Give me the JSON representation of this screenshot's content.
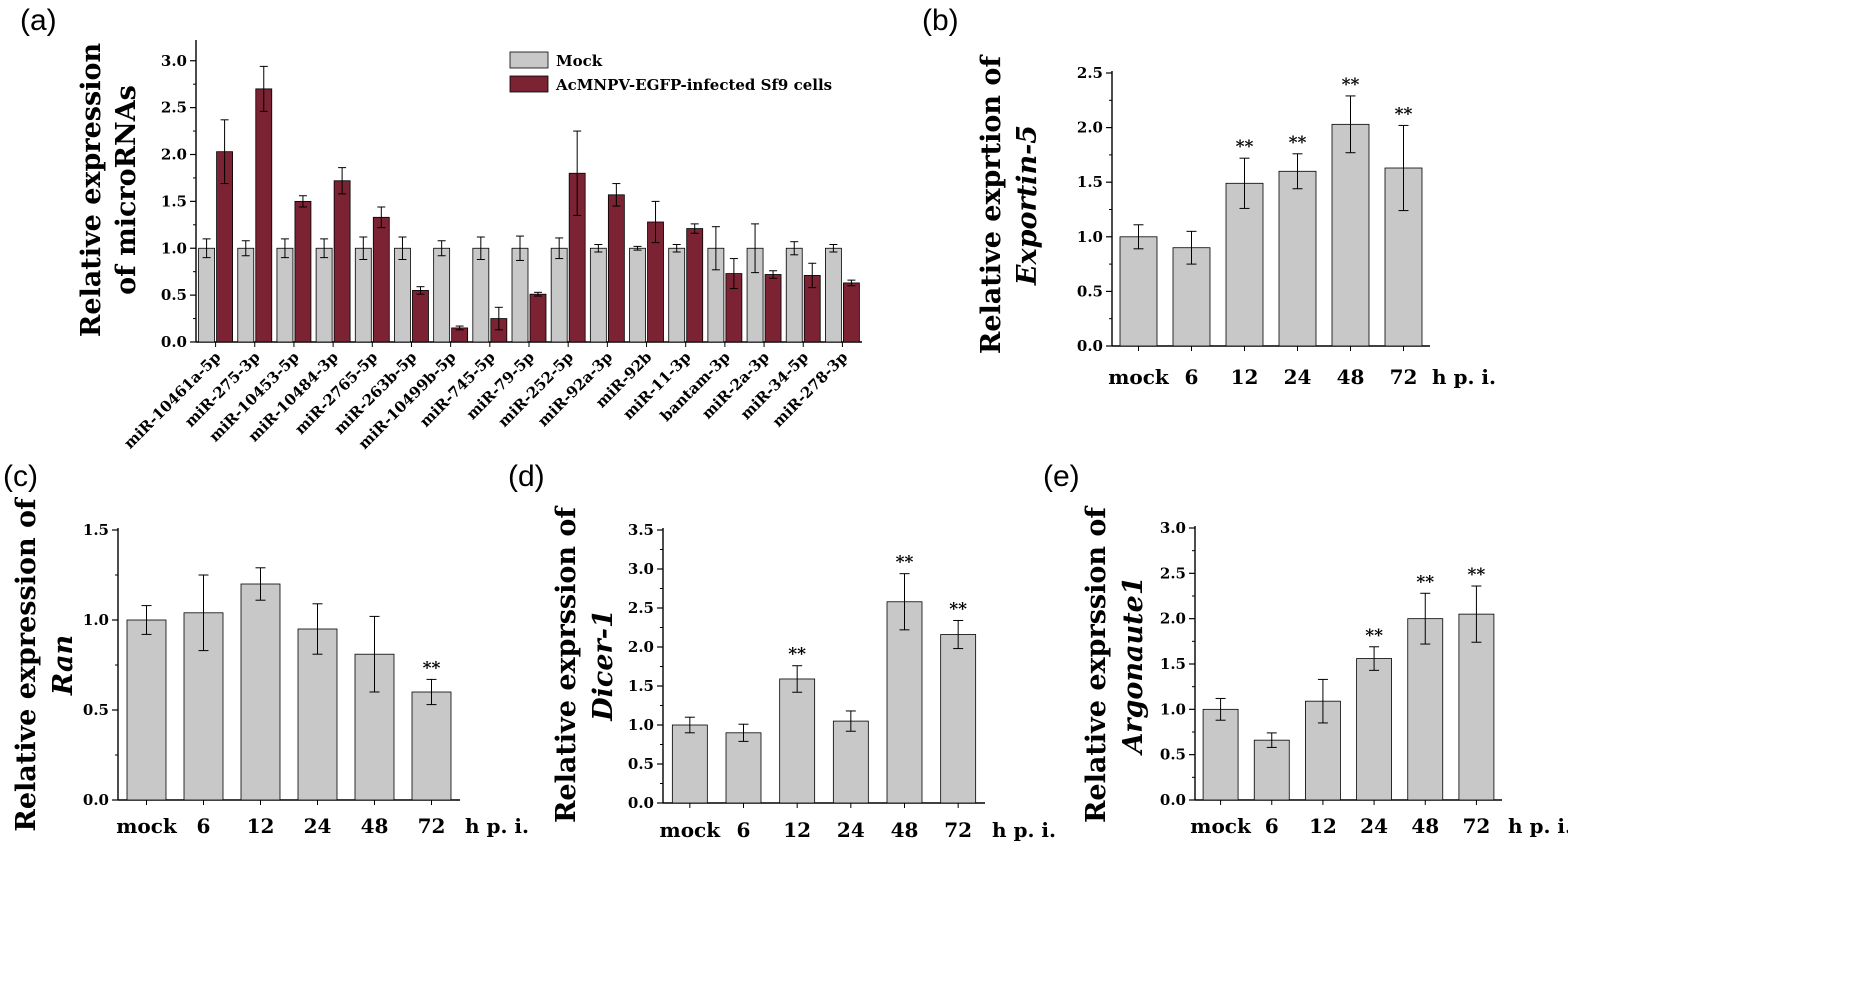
{
  "figure_colors": {
    "mock": "#c8c8c8",
    "infected": "#7b2233",
    "axis": "#000000"
  },
  "chart_data": [
    {
      "id": "a",
      "panel_label": "(a)",
      "type": "bar",
      "ylabel_line1": "Relative expression",
      "ylabel_line2": "of microRNAs",
      "ylim": [
        0,
        3.2
      ],
      "yticks": [
        "0.0",
        "0.5",
        "1.0",
        "1.5",
        "2.0",
        "2.5",
        "3.0"
      ],
      "categories": [
        "miR-10461a-5p",
        "miR-275-3p",
        "miR-10453-5p",
        "miR-10484-3p",
        "miR-2765-5p",
        "miR-263b-5p",
        "miR-10499b-5p",
        "miR-745-5p",
        "miR-79-5p",
        "miR-252-5p",
        "miR-92a-3p",
        "miR-92b",
        "miR-11-3p",
        "bantam-3p",
        "miR-2a-3p",
        "miR-34-5p",
        "miR-278-3p"
      ],
      "series": [
        {
          "name": "Mock",
          "values": [
            1.0,
            1.0,
            1.0,
            1.0,
            1.0,
            1.0,
            1.0,
            1.0,
            1.0,
            1.0,
            1.0,
            1.0,
            1.0,
            1.0,
            1.0,
            1.0,
            1.0
          ],
          "errors": [
            0.1,
            0.08,
            0.1,
            0.1,
            0.12,
            0.12,
            0.08,
            0.12,
            0.13,
            0.11,
            0.04,
            0.02,
            0.04,
            0.23,
            0.26,
            0.07,
            0.04
          ]
        },
        {
          "name": "AcMNPV-EGFP-infected Sf9 cells",
          "values": [
            2.03,
            2.7,
            1.5,
            1.72,
            1.33,
            0.55,
            0.15,
            0.25,
            0.51,
            1.8,
            1.57,
            1.28,
            1.21,
            0.73,
            0.72,
            0.71,
            0.63
          ],
          "errors": [
            0.34,
            0.24,
            0.06,
            0.14,
            0.11,
            0.04,
            0.02,
            0.12,
            0.02,
            0.45,
            0.12,
            0.22,
            0.05,
            0.16,
            0.04,
            0.13,
            0.03
          ]
        }
      ],
      "legend_position": "top-right"
    },
    {
      "id": "b",
      "panel_label": "(b)",
      "type": "bar",
      "ylabel_line1": "Relative exprtion of",
      "ylabel_line2": "Exportin-5",
      "xunit": "h p. i.",
      "ylim": [
        0,
        2.5
      ],
      "yticks": [
        "0.0",
        "0.5",
        "1.0",
        "1.5",
        "2.0",
        "2.5"
      ],
      "categories": [
        "mock",
        "6",
        "12",
        "24",
        "48",
        "72"
      ],
      "values": [
        1.0,
        0.9,
        1.49,
        1.6,
        2.03,
        1.63
      ],
      "errors": [
        0.11,
        0.15,
        0.23,
        0.16,
        0.26,
        0.39
      ],
      "annotations": [
        "",
        "",
        "**",
        "**",
        "**",
        "**"
      ]
    },
    {
      "id": "c",
      "panel_label": "(c)",
      "type": "bar",
      "ylabel_line1": "Relative expression of",
      "ylabel_line2": "Ran",
      "xunit": "h p. i.",
      "ylim": [
        0,
        1.5
      ],
      "yticks": [
        "0.0",
        "0.5",
        "1.0",
        "1.5"
      ],
      "categories": [
        "mock",
        "6",
        "12",
        "24",
        "48",
        "72"
      ],
      "values": [
        1.0,
        1.04,
        1.2,
        0.95,
        0.81,
        0.6
      ],
      "errors": [
        0.08,
        0.21,
        0.09,
        0.14,
        0.21,
        0.07
      ],
      "annotations": [
        "",
        "",
        "",
        "",
        "",
        "**"
      ]
    },
    {
      "id": "d",
      "panel_label": "(d)",
      "type": "bar",
      "ylabel_line1": "Relative exprssion of",
      "ylabel_line2": "Dicer-1",
      "xunit": "h p. i.",
      "ylim": [
        0,
        3.5
      ],
      "yticks": [
        "0.0",
        "0.5",
        "1.0",
        "1.5",
        "2.0",
        "2.5",
        "3.0",
        "3.5"
      ],
      "categories": [
        "mock",
        "6",
        "12",
        "24",
        "48",
        "72"
      ],
      "values": [
        1.0,
        0.9,
        1.59,
        1.05,
        2.58,
        2.16
      ],
      "errors": [
        0.1,
        0.11,
        0.17,
        0.13,
        0.36,
        0.18
      ],
      "annotations": [
        "",
        "",
        "**",
        "",
        "**",
        "**"
      ]
    },
    {
      "id": "e",
      "panel_label": "(e)",
      "type": "bar",
      "ylabel_line1": "Relative exprssion of",
      "ylabel_line2": "Argonaute1",
      "xunit": "h p. i.",
      "ylim": [
        0,
        3.0
      ],
      "yticks": [
        "0.0",
        "0.5",
        "1.0",
        "1.5",
        "2.0",
        "2.5",
        "3.0"
      ],
      "categories": [
        "mock",
        "6",
        "12",
        "24",
        "48",
        "72"
      ],
      "values": [
        1.0,
        0.66,
        1.09,
        1.56,
        2.0,
        2.05
      ],
      "errors": [
        0.12,
        0.08,
        0.24,
        0.13,
        0.28,
        0.31
      ],
      "annotations": [
        "",
        "",
        "",
        "**",
        "**",
        "**"
      ]
    }
  ]
}
